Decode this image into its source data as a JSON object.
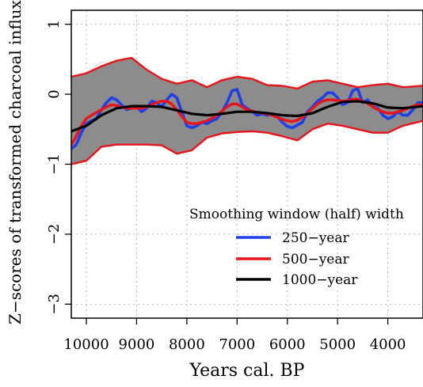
{
  "chart_data": {
    "type": "line",
    "title": "",
    "xlabel": "Years cal. BP",
    "ylabel": "Z−scores of transformed charcoal influx",
    "xlim": [
      10300,
      3300
    ],
    "ylim": [
      -3.2,
      1.2
    ],
    "x_reversed": true,
    "grid": true,
    "x_ticks": [
      10000,
      9000,
      8000,
      7000,
      6000,
      5000,
      4000
    ],
    "x_tick_labels": [
      "10000",
      "9000",
      "8000",
      "7000",
      "6000",
      "5000",
      "4000"
    ],
    "y_ticks": [
      1,
      0,
      -1,
      -2,
      -3
    ],
    "y_tick_labels": [
      "1",
      "0",
      "−1",
      "−2",
      "−3"
    ],
    "legend": {
      "title": "Smoothing window (half) width",
      "placement": "bottom-right"
    },
    "band": {
      "color": "#8c8c8c",
      "spaghetti_color": "#bdbdbd",
      "x": [
        10300,
        10000,
        9700,
        9400,
        9100,
        8800,
        8500,
        8200,
        7900,
        7600,
        7300,
        7000,
        6700,
        6400,
        6100,
        5800,
        5500,
        5200,
        4900,
        4600,
        4300,
        4000,
        3700,
        3300
      ],
      "lower": [
        -1.0,
        -0.95,
        -0.75,
        -0.72,
        -0.72,
        -0.72,
        -0.73,
        -0.85,
        -0.8,
        -0.62,
        -0.56,
        -0.54,
        -0.53,
        -0.55,
        -0.6,
        -0.66,
        -0.5,
        -0.42,
        -0.45,
        -0.5,
        -0.55,
        -0.55,
        -0.45,
        -0.38
      ],
      "upper": [
        0.25,
        0.3,
        0.4,
        0.48,
        0.52,
        0.35,
        0.22,
        0.15,
        0.2,
        0.1,
        0.2,
        0.25,
        0.22,
        0.13,
        0.12,
        0.08,
        0.18,
        0.2,
        0.15,
        0.1,
        0.13,
        0.15,
        0.1,
        0.12
      ]
    },
    "series": [
      {
        "name": "250−year",
        "color": "#1f3fe8",
        "x": [
          10300,
          10200,
          10100,
          10000,
          9900,
          9800,
          9700,
          9600,
          9500,
          9400,
          9300,
          9200,
          9100,
          9000,
          8900,
          8800,
          8700,
          8600,
          8500,
          8400,
          8300,
          8200,
          8100,
          8000,
          7900,
          7800,
          7700,
          7600,
          7500,
          7400,
          7300,
          7200,
          7100,
          7000,
          6900,
          6800,
          6700,
          6600,
          6500,
          6400,
          6300,
          6200,
          6100,
          6000,
          5900,
          5800,
          5700,
          5600,
          5500,
          5400,
          5300,
          5200,
          5100,
          5000,
          4900,
          4800,
          4700,
          4600,
          4500,
          4400,
          4300,
          4200,
          4100,
          4000,
          3900,
          3800,
          3700,
          3600,
          3500,
          3400,
          3300
        ],
        "y": [
          -0.78,
          -0.72,
          -0.55,
          -0.42,
          -0.38,
          -0.35,
          -0.22,
          -0.12,
          -0.05,
          -0.08,
          -0.15,
          -0.22,
          -0.2,
          -0.18,
          -0.25,
          -0.2,
          -0.1,
          -0.12,
          -0.18,
          -0.08,
          0.0,
          -0.05,
          -0.25,
          -0.45,
          -0.48,
          -0.45,
          -0.4,
          -0.42,
          -0.38,
          -0.35,
          -0.25,
          -0.12,
          0.05,
          0.07,
          -0.15,
          -0.2,
          -0.25,
          -0.3,
          -0.28,
          -0.3,
          -0.28,
          -0.32,
          -0.4,
          -0.46,
          -0.48,
          -0.44,
          -0.4,
          -0.25,
          -0.18,
          -0.1,
          -0.05,
          0.02,
          0.02,
          -0.05,
          -0.15,
          -0.12,
          0.05,
          0.08,
          -0.12,
          -0.08,
          -0.18,
          -0.2,
          -0.3,
          -0.35,
          -0.32,
          -0.25,
          -0.3,
          -0.3,
          -0.22,
          -0.12,
          -0.12
        ]
      },
      {
        "name": "500−year",
        "color": "#e8141a",
        "x": [
          10300,
          10200,
          10100,
          10000,
          9900,
          9800,
          9700,
          9600,
          9500,
          9400,
          9300,
          9200,
          9100,
          9000,
          8900,
          8800,
          8700,
          8600,
          8500,
          8400,
          8300,
          8200,
          8100,
          8000,
          7900,
          7800,
          7700,
          7600,
          7500,
          7400,
          7300,
          7200,
          7100,
          7000,
          6900,
          6800,
          6700,
          6600,
          6500,
          6400,
          6300,
          6200,
          6100,
          6000,
          5900,
          5800,
          5700,
          5600,
          5500,
          5400,
          5300,
          5200,
          5100,
          5000,
          4900,
          4800,
          4700,
          4600,
          4500,
          4400,
          4300,
          4200,
          4100,
          4000,
          3900,
          3800,
          3700,
          3600,
          3500,
          3400,
          3300
        ],
        "y": [
          -0.72,
          -0.6,
          -0.45,
          -0.35,
          -0.3,
          -0.26,
          -0.22,
          -0.18,
          -0.15,
          -0.16,
          -0.18,
          -0.2,
          -0.2,
          -0.2,
          -0.2,
          -0.18,
          -0.15,
          -0.12,
          -0.1,
          -0.1,
          -0.14,
          -0.22,
          -0.32,
          -0.4,
          -0.42,
          -0.42,
          -0.4,
          -0.38,
          -0.34,
          -0.3,
          -0.24,
          -0.18,
          -0.14,
          -0.14,
          -0.18,
          -0.22,
          -0.24,
          -0.26,
          -0.27,
          -0.28,
          -0.3,
          -0.33,
          -0.36,
          -0.38,
          -0.39,
          -0.37,
          -0.33,
          -0.27,
          -0.2,
          -0.14,
          -0.1,
          -0.08,
          -0.08,
          -0.09,
          -0.1,
          -0.09,
          -0.07,
          -0.07,
          -0.1,
          -0.13,
          -0.18,
          -0.22,
          -0.25,
          -0.27,
          -0.27,
          -0.25,
          -0.23,
          -0.2,
          -0.17,
          -0.15,
          -0.15
        ]
      },
      {
        "name": "1000−year",
        "color": "#000000",
        "x": [
          10300,
          10000,
          9700,
          9400,
          9100,
          8800,
          8500,
          8200,
          7900,
          7600,
          7300,
          7000,
          6700,
          6400,
          6100,
          5800,
          5500,
          5200,
          4900,
          4600,
          4300,
          4000,
          3700,
          3300
        ],
        "y": [
          -0.53,
          -0.45,
          -0.3,
          -0.2,
          -0.17,
          -0.17,
          -0.18,
          -0.23,
          -0.28,
          -0.3,
          -0.28,
          -0.25,
          -0.25,
          -0.27,
          -0.3,
          -0.31,
          -0.27,
          -0.18,
          -0.11,
          -0.1,
          -0.13,
          -0.19,
          -0.2,
          -0.17
        ]
      }
    ]
  }
}
